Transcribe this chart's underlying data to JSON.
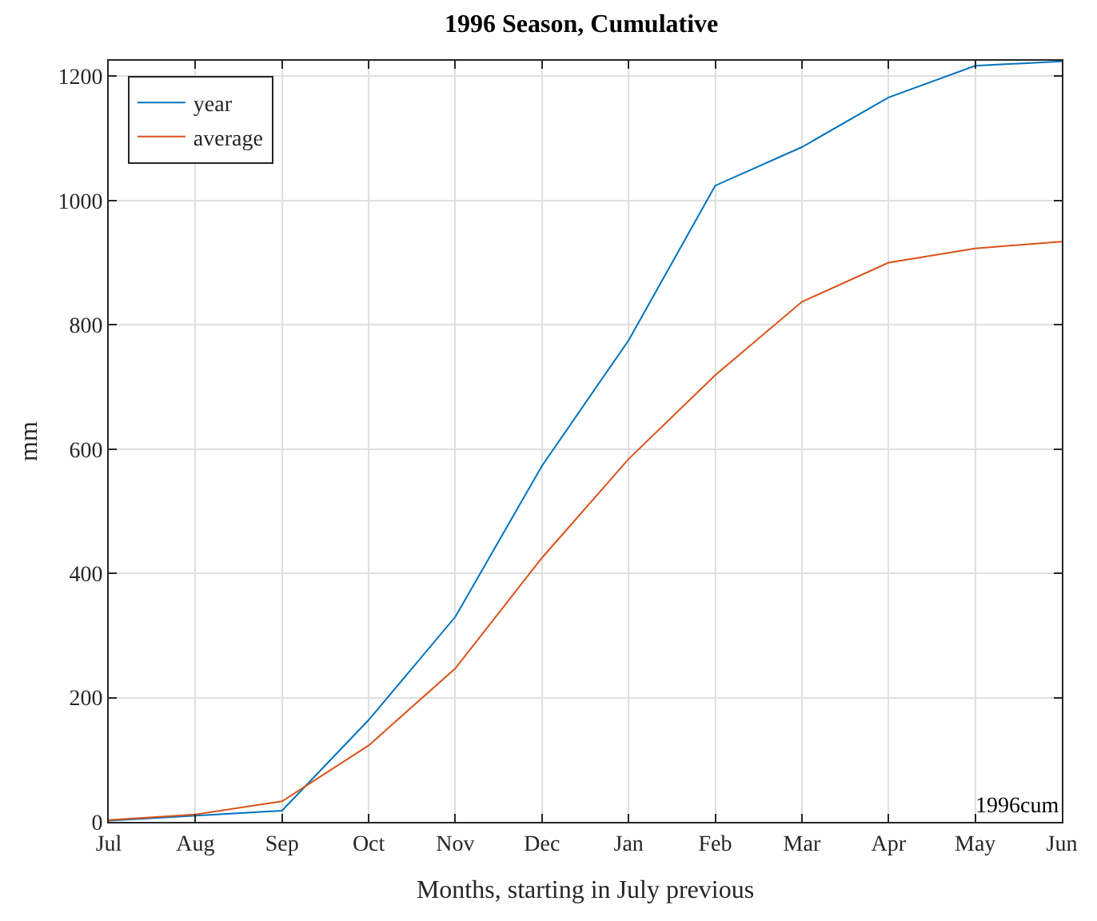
{
  "chart_data": {
    "type": "line",
    "title": "1996 Season, Cumulative",
    "xlabel": "Months, starting in July previous",
    "ylabel": "mm",
    "categories": [
      "Jul",
      "Aug",
      "Sep",
      "Oct",
      "Nov",
      "Dec",
      "Jan",
      "Feb",
      "Mar",
      "Apr",
      "May",
      "Jun"
    ],
    "series": [
      {
        "name": "year",
        "color": "#0072bd",
        "values": [
          2,
          10,
          18,
          164,
          330,
          573,
          775,
          1024,
          1086,
          1166,
          1217,
          1224
        ]
      },
      {
        "name": "average",
        "color": "#d95319",
        "values": [
          3,
          12,
          33,
          123,
          247,
          425,
          584,
          719,
          837,
          900,
          923,
          934
        ]
      }
    ],
    "ylim": [
      0,
      1225
    ],
    "yticks": [
      0,
      200,
      400,
      600,
      800,
      1000,
      1200
    ],
    "grid": true,
    "legend": "top left",
    "marker": "none",
    "line_style": "solid",
    "annotations": [
      "1996cum"
    ]
  }
}
